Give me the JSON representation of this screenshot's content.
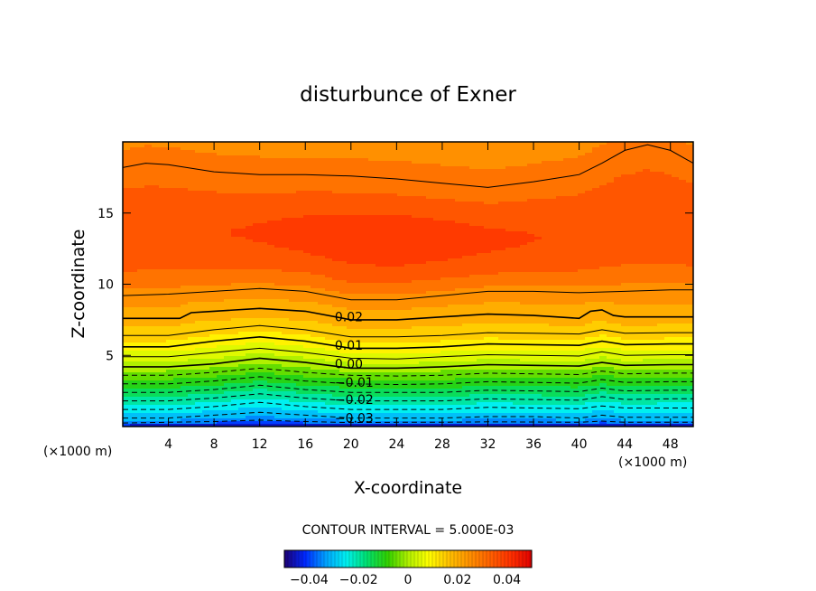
{
  "chart_data": {
    "type": "heatmap",
    "title": "disturbunce of Exner",
    "xlabel": "X-coordinate",
    "ylabel": "Z-coordinate",
    "x_unit_note": "(×1000 m)",
    "x_unit_note_right": "(×1000 m)",
    "xlim": [
      0,
      50
    ],
    "ylim": [
      0,
      20
    ],
    "x_ticks": [
      4,
      8,
      12,
      16,
      20,
      24,
      28,
      32,
      36,
      40,
      44,
      48
    ],
    "x_tick_labels": [
      "4",
      "8",
      "12",
      "16",
      "20",
      "24",
      "28",
      "32",
      "36",
      "40",
      "44",
      "48"
    ],
    "y_ticks": [
      5,
      10,
      15
    ],
    "y_tick_labels": [
      "5",
      "10",
      "15"
    ],
    "contour_interval_text": "CONTOUR INTERVAL = 5.000E-03",
    "contour_interval": 0.005,
    "contour_labels": [
      {
        "text": "0.02",
        "x": 17.0,
        "z": 7.7
      },
      {
        "text": "0.01",
        "x": 17.0,
        "z": 5.7
      },
      {
        "text": "0.00",
        "x": 17.0,
        "z": 4.4
      },
      {
        "text": "−0.01",
        "x": 17.0,
        "z": 3.1
      },
      {
        "text": "−0.02",
        "x": 17.0,
        "z": 1.9
      },
      {
        "text": "−0.03",
        "x": 17.0,
        "z": 0.6
      }
    ],
    "contours": [
      {
        "level": -0.035,
        "dashed": true,
        "x": [
          0,
          4,
          8,
          12,
          16,
          20,
          24,
          28,
          32,
          36,
          40,
          42,
          44,
          48,
          50
        ],
        "z": [
          0.25,
          0.3,
          0.35,
          0.45,
          0.35,
          0.28,
          0.3,
          0.3,
          0.33,
          0.32,
          0.3,
          0.38,
          0.3,
          0.3,
          0.3
        ]
      },
      {
        "level": -0.03,
        "dashed": true,
        "x": [
          0,
          4,
          8,
          12,
          16,
          20,
          24,
          28,
          32,
          36,
          40,
          42,
          44,
          48,
          50
        ],
        "z": [
          0.6,
          0.6,
          0.8,
          1.0,
          0.8,
          0.6,
          0.6,
          0.6,
          0.7,
          0.7,
          0.6,
          0.8,
          0.65,
          0.65,
          0.65
        ]
      },
      {
        "level": -0.025,
        "dashed": true,
        "x": [
          0,
          4,
          8,
          12,
          16,
          20,
          24,
          28,
          32,
          36,
          40,
          42,
          44,
          48,
          50
        ],
        "z": [
          1.2,
          1.2,
          1.4,
          1.7,
          1.4,
          1.2,
          1.2,
          1.2,
          1.35,
          1.3,
          1.25,
          1.45,
          1.3,
          1.3,
          1.3
        ]
      },
      {
        "level": -0.02,
        "dashed": true,
        "x": [
          0,
          4,
          8,
          12,
          16,
          20,
          24,
          28,
          32,
          36,
          40,
          42,
          44,
          48,
          50
        ],
        "z": [
          1.8,
          1.8,
          2.0,
          2.3,
          2.0,
          1.8,
          1.8,
          1.8,
          1.95,
          1.9,
          1.85,
          2.1,
          1.9,
          1.95,
          1.95
        ]
      },
      {
        "level": -0.015,
        "dashed": true,
        "x": [
          0,
          4,
          8,
          12,
          16,
          20,
          24,
          28,
          32,
          36,
          40,
          42,
          44,
          48,
          50
        ],
        "z": [
          2.4,
          2.4,
          2.6,
          2.9,
          2.6,
          2.4,
          2.4,
          2.4,
          2.55,
          2.5,
          2.45,
          2.7,
          2.5,
          2.55,
          2.55
        ]
      },
      {
        "level": -0.01,
        "dashed": true,
        "x": [
          0,
          4,
          8,
          12,
          16,
          20,
          24,
          28,
          32,
          36,
          40,
          42,
          44,
          48,
          50
        ],
        "z": [
          3.0,
          3.0,
          3.2,
          3.5,
          3.2,
          3.0,
          2.95,
          3.0,
          3.15,
          3.1,
          3.05,
          3.3,
          3.1,
          3.15,
          3.15
        ]
      },
      {
        "level": -0.005,
        "dashed": true,
        "x": [
          0,
          4,
          8,
          12,
          16,
          20,
          24,
          28,
          32,
          36,
          40,
          42,
          44,
          48,
          50
        ],
        "z": [
          3.6,
          3.6,
          3.8,
          4.1,
          3.8,
          3.6,
          3.55,
          3.6,
          3.75,
          3.7,
          3.65,
          3.9,
          3.7,
          3.75,
          3.75
        ]
      },
      {
        "level": 0.0,
        "dashed": false,
        "x": [
          0,
          4,
          8,
          12,
          16,
          20,
          24,
          28,
          32,
          36,
          40,
          42,
          44,
          48,
          50
        ],
        "z": [
          4.2,
          4.2,
          4.4,
          4.8,
          4.5,
          4.1,
          4.1,
          4.2,
          4.35,
          4.3,
          4.25,
          4.5,
          4.3,
          4.35,
          4.35
        ]
      },
      {
        "level": 0.005,
        "dashed": false,
        "x": [
          0,
          4,
          8,
          12,
          16,
          20,
          24,
          28,
          32,
          36,
          40,
          42,
          44,
          48,
          50
        ],
        "z": [
          4.9,
          4.9,
          5.2,
          5.5,
          5.2,
          4.8,
          4.75,
          4.9,
          5.05,
          5.0,
          4.95,
          5.25,
          5.0,
          5.05,
          5.05
        ]
      },
      {
        "level": 0.01,
        "dashed": false,
        "x": [
          0,
          4,
          8,
          12,
          16,
          20,
          24,
          28,
          32,
          36,
          40,
          42,
          44,
          48,
          50
        ],
        "z": [
          5.6,
          5.6,
          6.0,
          6.3,
          6.0,
          5.5,
          5.5,
          5.6,
          5.8,
          5.75,
          5.7,
          6.0,
          5.75,
          5.8,
          5.8
        ]
      },
      {
        "level": 0.015,
        "dashed": false,
        "x": [
          0,
          4,
          8,
          12,
          16,
          20,
          24,
          28,
          32,
          36,
          40,
          42,
          44,
          48,
          50
        ],
        "z": [
          6.4,
          6.4,
          6.8,
          7.1,
          6.8,
          6.3,
          6.3,
          6.4,
          6.6,
          6.55,
          6.5,
          6.8,
          6.55,
          6.6,
          6.6
        ]
      },
      {
        "level": 0.02,
        "dashed": false,
        "x": [
          0,
          4,
          5,
          6,
          8,
          12,
          16,
          20,
          24,
          28,
          32,
          36,
          40,
          41,
          42,
          43,
          44,
          48,
          50
        ],
        "z": [
          7.6,
          7.6,
          7.6,
          8.0,
          8.1,
          8.3,
          8.1,
          7.5,
          7.5,
          7.7,
          7.9,
          7.8,
          7.6,
          8.1,
          8.2,
          7.8,
          7.7,
          7.7,
          7.7
        ]
      },
      {
        "level": 0.025,
        "dashed": false,
        "x": [
          0,
          4,
          8,
          12,
          16,
          20,
          24,
          28,
          32,
          36,
          40,
          44,
          48,
          50
        ],
        "z": [
          9.2,
          9.3,
          9.5,
          9.7,
          9.5,
          8.9,
          8.9,
          9.2,
          9.5,
          9.5,
          9.4,
          9.5,
          9.6,
          9.6
        ]
      },
      {
        "level": 0.03,
        "dashed": false,
        "x": [
          0,
          2,
          4,
          8,
          12,
          16,
          20,
          24,
          28,
          32,
          36,
          40,
          42,
          44,
          46,
          48,
          50
        ],
        "z": [
          18.2,
          18.5,
          18.4,
          17.9,
          17.7,
          17.7,
          17.6,
          17.4,
          17.1,
          16.8,
          17.2,
          17.7,
          18.5,
          19.4,
          19.8,
          19.4,
          18.5
        ]
      }
    ],
    "colorbar": {
      "tick_labels": [
        "−0.04",
        "−0.02",
        "0",
        "0.02",
        "0.04"
      ],
      "tick_values": [
        -0.04,
        -0.02,
        0,
        0.02,
        0.04
      ],
      "range": [
        -0.05,
        0.05
      ]
    },
    "colormap": [
      "#1d0072",
      "#0028ff",
      "#00a0ff",
      "#00f0f0",
      "#00e070",
      "#30d000",
      "#b0f000",
      "#ffff00",
      "#ffc000",
      "#ff9000",
      "#ff6000",
      "#ff3000",
      "#e00000"
    ]
  }
}
